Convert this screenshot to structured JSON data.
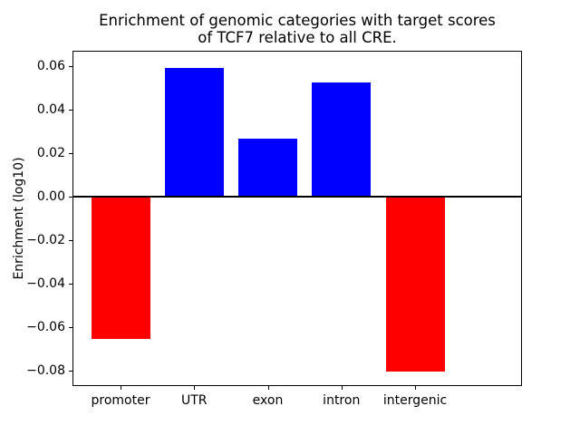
{
  "figure": {
    "title_line1": "Enrichment of genomic categories with target scores",
    "title_line2": "of TCF7 relative to all CRE."
  },
  "chart_data": {
    "type": "bar",
    "title": "Enrichment of genomic categories with target scores\nof TCF7 relative to all CRE.",
    "xlabel": "",
    "ylabel": "Enrichment (log10)",
    "categories": [
      "promoter",
      "UTR",
      "exon",
      "intron",
      "intergenic"
    ],
    "values": [
      -0.0654,
      0.0593,
      0.0268,
      0.0525,
      -0.0805
    ],
    "bar_colors": [
      "#ff0000",
      "#0000ff",
      "#0000ff",
      "#0000ff",
      "#ff0000"
    ],
    "positive_color": "#0000ff",
    "negative_color": "#ff0000",
    "yticks": [
      0.06,
      0.04,
      0.02,
      0.0,
      -0.02,
      -0.04,
      -0.06,
      -0.08
    ],
    "ytick_labels": [
      "0.06",
      "0.04",
      "0.02",
      "0.00",
      "−0.02",
      "−0.04",
      "−0.06",
      "−0.08"
    ],
    "ylim": [
      -0.0867,
      0.0667
    ],
    "grid": false,
    "legend": "none",
    "zero_line_color": "#000000",
    "axes_color": "#000000"
  }
}
